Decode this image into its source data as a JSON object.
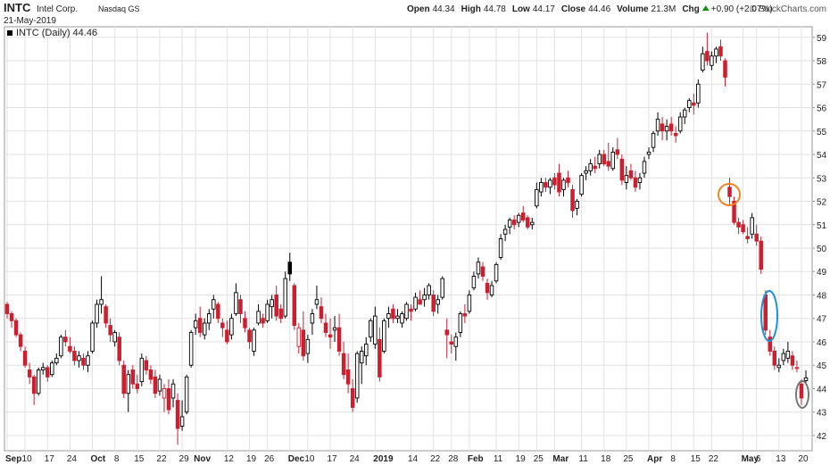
{
  "chart_data": {
    "type": "candlestick",
    "header": {
      "symbol": "INTC",
      "name": "Intel Corp.",
      "exchange": "Nasdaq GS",
      "date": "21-May-2019",
      "quote": [
        {
          "label": "Open",
          "value": "44.34"
        },
        {
          "label": "High",
          "value": "44.78"
        },
        {
          "label": "Low",
          "value": "44.17"
        },
        {
          "label": "Close",
          "value": "44.46"
        },
        {
          "label": "Volume",
          "value": "21.3M"
        },
        {
          "label": "Chg",
          "value": "+0.90 (+2.07%)"
        }
      ],
      "credit": "© StockCharts.com"
    },
    "legend": "INTC (Daily) 44.46",
    "up_color": "#000000",
    "down_color": "#cc1f2f",
    "ylim": [
      41.35,
      59.45
    ],
    "yticks": [
      42,
      43,
      44,
      45,
      46,
      47,
      48,
      49,
      50,
      51,
      52,
      53,
      54,
      55,
      56,
      57,
      58,
      59
    ],
    "grid": true,
    "categories": [
      "Sep",
      null,
      null,
      null,
      "10",
      null,
      null,
      null,
      null,
      "17",
      null,
      null,
      null,
      null,
      "24",
      null,
      null,
      null,
      null,
      "Oct",
      null,
      null,
      null,
      null,
      "8",
      null,
      null,
      null,
      null,
      "15",
      null,
      null,
      null,
      null,
      "22",
      null,
      null,
      null,
      null,
      "29",
      null,
      null,
      "Nov",
      null,
      null,
      null,
      null,
      null,
      null,
      "12",
      null,
      null,
      null,
      null,
      "19",
      null,
      null,
      null,
      "26",
      null,
      null,
      null,
      null,
      "Dec",
      null,
      null,
      null,
      "10",
      null,
      null,
      null,
      null,
      "17",
      null,
      null,
      null,
      null,
      "24",
      null,
      null,
      null,
      null,
      "2019",
      null,
      null,
      null,
      null,
      null,
      null,
      null,
      "14",
      null,
      null,
      null,
      null,
      "22",
      null,
      null,
      null,
      "28",
      null,
      null,
      null,
      "Feb",
      null,
      null,
      null,
      null,
      null,
      "11",
      null,
      null,
      null,
      null,
      "19",
      null,
      null,
      null,
      "25",
      null,
      null,
      null,
      "Mar",
      null,
      null,
      null,
      null,
      null,
      "11",
      null,
      null,
      null,
      null,
      "18",
      null,
      null,
      null,
      null,
      "25",
      null,
      null,
      null,
      null,
      "Apr",
      null,
      null,
      null,
      null,
      "8",
      null,
      null,
      null,
      null,
      "15",
      null,
      null,
      null,
      "22",
      null,
      null,
      null,
      null,
      null,
      null,
      "May",
      null,
      null,
      "6",
      null,
      null,
      null,
      null,
      "13",
      null,
      null,
      null,
      null,
      "20",
      null
    ],
    "ohlc": [
      [
        47.6,
        47.7,
        47.0,
        47.2
      ],
      [
        47.2,
        47.3,
        46.6,
        46.9
      ],
      [
        46.9,
        47.0,
        46.2,
        46.3
      ],
      [
        46.3,
        46.4,
        45.6,
        45.8
      ],
      [
        45.6,
        45.8,
        44.9,
        45.0
      ],
      [
        44.8,
        45.1,
        44.2,
        44.5
      ],
      [
        44.5,
        44.6,
        43.3,
        43.8
      ],
      [
        43.8,
        44.9,
        43.7,
        44.8
      ],
      [
        44.8,
        45.1,
        44.6,
        44.9
      ],
      [
        44.9,
        45.0,
        44.3,
        44.5
      ],
      [
        44.6,
        45.2,
        44.5,
        45.1
      ],
      [
        45.1,
        45.5,
        45.0,
        45.3
      ],
      [
        45.4,
        46.3,
        45.3,
        46.2
      ],
      [
        46.2,
        46.5,
        45.8,
        46.0
      ],
      [
        45.8,
        46.2,
        45.5,
        45.6
      ],
      [
        45.6,
        45.8,
        45.0,
        45.2
      ],
      [
        45.2,
        45.6,
        44.9,
        45.4
      ],
      [
        45.3,
        45.5,
        44.8,
        45.0
      ],
      [
        45.0,
        45.6,
        44.7,
        45.4
      ],
      [
        45.6,
        46.9,
        45.5,
        46.8
      ],
      [
        46.8,
        47.8,
        46.6,
        47.6
      ],
      [
        47.6,
        48.8,
        47.2,
        47.8
      ],
      [
        47.5,
        47.6,
        46.6,
        46.8
      ],
      [
        46.7,
        47.0,
        46.0,
        46.3
      ],
      [
        46.0,
        46.5,
        45.8,
        46.4
      ],
      [
        46.2,
        46.4,
        45.0,
        45.2
      ],
      [
        45.0,
        45.2,
        43.6,
        43.8
      ],
      [
        43.8,
        44.8,
        43.0,
        44.6
      ],
      [
        44.8,
        45.0,
        44.0,
        44.2
      ],
      [
        44.2,
        44.6,
        43.8,
        44.0
      ],
      [
        44.3,
        45.5,
        44.1,
        45.3
      ],
      [
        45.2,
        45.4,
        44.6,
        44.8
      ],
      [
        44.8,
        45.0,
        44.2,
        44.4
      ],
      [
        44.5,
        44.8,
        43.6,
        43.8
      ],
      [
        43.9,
        44.6,
        43.7,
        44.4
      ],
      [
        43.6,
        44.2,
        43.0,
        44.0
      ],
      [
        44.0,
        44.4,
        42.9,
        43.1
      ],
      [
        43.6,
        44.4,
        43.2,
        44.2
      ],
      [
        43.5,
        43.8,
        41.6,
        42.3
      ],
      [
        42.4,
        43.5,
        42.2,
        42.8
      ],
      [
        43.0,
        44.6,
        42.9,
        44.5
      ],
      [
        45.0,
        46.5,
        44.9,
        46.4
      ],
      [
        46.6,
        47.2,
        46.3,
        46.9
      ],
      [
        47.0,
        47.5,
        46.2,
        46.4
      ],
      [
        46.3,
        47.0,
        46.1,
        46.8
      ],
      [
        46.8,
        47.4,
        46.5,
        47.2
      ],
      [
        47.4,
        48.0,
        47.0,
        47.8
      ],
      [
        47.6,
        47.7,
        46.8,
        47.0
      ],
      [
        46.8,
        47.0,
        46.2,
        46.6
      ],
      [
        46.5,
        46.9,
        45.9,
        46.0
      ],
      [
        46.3,
        47.2,
        46.1,
        47.0
      ],
      [
        47.2,
        48.5,
        47.1,
        48.1
      ],
      [
        47.8,
        48.0,
        46.8,
        47.2
      ],
      [
        47.0,
        47.3,
        46.4,
        46.6
      ],
      [
        46.5,
        46.6,
        45.7,
        46.0
      ],
      [
        45.6,
        46.6,
        45.4,
        46.5
      ],
      [
        46.8,
        47.6,
        46.7,
        47.3
      ],
      [
        47.0,
        47.2,
        46.6,
        46.8
      ],
      [
        46.9,
        47.8,
        46.8,
        47.6
      ],
      [
        47.5,
        48.0,
        47.0,
        47.8
      ],
      [
        48.0,
        48.4,
        46.9,
        47.1
      ],
      [
        47.4,
        47.6,
        46.8,
        47.0
      ],
      [
        47.1,
        49.0,
        47.0,
        48.7
      ],
      [
        49.4,
        49.8,
        48.6,
        48.9
      ],
      [
        48.4,
        48.5,
        46.5,
        46.7
      ],
      [
        45.8,
        46.8,
        45.5,
        46.6
      ],
      [
        46.5,
        47.3,
        45.2,
        45.4
      ],
      [
        45.5,
        46.3,
        45.1,
        46.1
      ],
      [
        46.8,
        47.4,
        46.3,
        47.2
      ],
      [
        47.6,
        48.4,
        47.4,
        47.8
      ],
      [
        47.5,
        47.9,
        46.8,
        47.0
      ],
      [
        46.8,
        47.2,
        46.2,
        46.4
      ],
      [
        46.3,
        47.0,
        45.7,
        46.2
      ],
      [
        46.5,
        47.1,
        46.0,
        46.6
      ],
      [
        46.6,
        47.2,
        45.4,
        45.6
      ],
      [
        45.5,
        46.0,
        44.4,
        44.6
      ],
      [
        44.8,
        45.5,
        43.8,
        44.2
      ],
      [
        44.0,
        44.4,
        43.0,
        43.2
      ],
      [
        43.6,
        45.6,
        43.4,
        45.5
      ],
      [
        45.1,
        45.8,
        44.2,
        45.6
      ],
      [
        45.4,
        46.2,
        45.0,
        45.9
      ],
      [
        46.2,
        47.0,
        46.0,
        46.9
      ],
      [
        45.9,
        47.5,
        45.7,
        47.1
      ],
      [
        46.1,
        46.6,
        44.3,
        44.5
      ],
      [
        45.6,
        47.0,
        45.5,
        46.9
      ],
      [
        47.0,
        47.5,
        46.6,
        47.2
      ],
      [
        47.4,
        47.6,
        46.8,
        47.0
      ],
      [
        47.0,
        47.4,
        46.8,
        47.1
      ],
      [
        46.8,
        47.3,
        46.6,
        47.2
      ],
      [
        47.0,
        47.7,
        46.9,
        47.6
      ],
      [
        47.4,
        47.6,
        46.9,
        47.3
      ],
      [
        47.4,
        48.1,
        47.3,
        47.9
      ],
      [
        47.8,
        48.2,
        47.6,
        47.6
      ],
      [
        47.8,
        48.3,
        47.5,
        48.0
      ],
      [
        48.0,
        48.5,
        47.8,
        48.4
      ],
      [
        48.0,
        48.2,
        47.1,
        47.3
      ],
      [
        47.6,
        48.0,
        47.2,
        47.8
      ],
      [
        47.9,
        48.8,
        47.8,
        48.7
      ],
      [
        46.5,
        47.0,
        45.3,
        46.3
      ],
      [
        46.0,
        46.3,
        45.5,
        45.9
      ],
      [
        45.8,
        46.4,
        45.2,
        46.2
      ],
      [
        46.4,
        47.3,
        46.2,
        47.2
      ],
      [
        47.2,
        47.6,
        46.8,
        47.1
      ],
      [
        47.3,
        48.2,
        47.2,
        48.0
      ],
      [
        48.3,
        49.0,
        48.2,
        48.8
      ],
      [
        48.9,
        49.6,
        48.7,
        49.4
      ],
      [
        49.2,
        49.4,
        48.6,
        48.8
      ],
      [
        48.5,
        48.7,
        47.8,
        48.1
      ],
      [
        48.0,
        48.6,
        47.9,
        48.4
      ],
      [
        48.6,
        49.4,
        48.5,
        49.3
      ],
      [
        49.6,
        50.6,
        49.5,
        50.4
      ],
      [
        50.6,
        51.0,
        50.3,
        50.8
      ],
      [
        50.9,
        51.3,
        50.6,
        51.2
      ],
      [
        51.2,
        51.4,
        50.8,
        51.0
      ],
      [
        51.1,
        51.5,
        50.9,
        51.4
      ],
      [
        51.5,
        51.8,
        51.1,
        51.2
      ],
      [
        51.3,
        51.4,
        50.8,
        50.9
      ],
      [
        51.0,
        51.3,
        50.8,
        51.1
      ],
      [
        51.8,
        52.8,
        51.7,
        52.5
      ],
      [
        52.4,
        53.0,
        52.2,
        52.8
      ],
      [
        52.8,
        53.0,
        52.4,
        52.6
      ],
      [
        52.6,
        53.0,
        52.3,
        52.9
      ],
      [
        53.0,
        53.2,
        52.5,
        52.7
      ],
      [
        53.2,
        53.6,
        52.2,
        52.4
      ],
      [
        52.5,
        53.0,
        52.2,
        52.9
      ],
      [
        53.0,
        53.3,
        52.6,
        52.8
      ],
      [
        52.5,
        52.7,
        51.3,
        51.6
      ],
      [
        51.7,
        52.1,
        51.4,
        52.0
      ],
      [
        52.3,
        53.2,
        52.2,
        53.1
      ],
      [
        53.2,
        53.5,
        52.9,
        53.3
      ],
      [
        53.3,
        53.8,
        53.1,
        53.6
      ],
      [
        53.5,
        53.9,
        53.2,
        53.4
      ],
      [
        53.6,
        54.2,
        53.4,
        54.0
      ],
      [
        54.0,
        54.2,
        53.5,
        53.6
      ],
      [
        53.7,
        54.5,
        53.3,
        53.5
      ],
      [
        53.4,
        54.3,
        53.3,
        54.1
      ],
      [
        54.2,
        54.7,
        53.8,
        54.0
      ],
      [
        53.8,
        54.0,
        52.7,
        52.9
      ],
      [
        52.8,
        53.5,
        52.5,
        53.1
      ],
      [
        53.3,
        53.6,
        52.9,
        53.0
      ],
      [
        53.0,
        53.3,
        52.4,
        52.6
      ],
      [
        52.8,
        53.2,
        52.5,
        53.0
      ],
      [
        53.2,
        53.9,
        53.0,
        53.7
      ],
      [
        54.0,
        54.3,
        53.8,
        54.1
      ],
      [
        54.3,
        55.0,
        54.1,
        54.9
      ],
      [
        55.0,
        55.8,
        54.8,
        55.5
      ],
      [
        55.3,
        55.6,
        54.6,
        55.0
      ],
      [
        55.0,
        55.5,
        54.6,
        55.2
      ],
      [
        55.3,
        55.6,
        54.8,
        55.0
      ],
      [
        54.9,
        55.2,
        54.5,
        54.8
      ],
      [
        55.0,
        55.8,
        54.9,
        55.6
      ],
      [
        55.6,
        56.0,
        55.3,
        55.9
      ],
      [
        56.0,
        56.4,
        55.8,
        56.3
      ],
      [
        56.2,
        56.6,
        55.7,
        56.1
      ],
      [
        56.2,
        57.2,
        56.0,
        57.0
      ],
      [
        57.6,
        58.6,
        57.5,
        58.3
      ],
      [
        58.4,
        59.2,
        57.8,
        58.0
      ],
      [
        57.8,
        58.4,
        57.6,
        58.2
      ],
      [
        58.2,
        58.6,
        57.9,
        58.5
      ],
      [
        58.6,
        58.9,
        58.0,
        58.2
      ],
      [
        58.0,
        58.1,
        56.9,
        57.3
      ],
      [
        52.6,
        53.0,
        51.8,
        52.2
      ],
      [
        52.0,
        52.2,
        51.0,
        51.1
      ],
      [
        51.1,
        51.3,
        50.6,
        50.9
      ],
      [
        51.0,
        51.2,
        50.6,
        50.7
      ],
      [
        50.5,
        50.9,
        50.2,
        50.4
      ],
      [
        50.6,
        51.5,
        50.4,
        51.3
      ],
      [
        50.6,
        51.0,
        50.1,
        50.3
      ],
      [
        50.3,
        50.5,
        48.9,
        49.1
      ],
      [
        48.0,
        48.2,
        46.3,
        46.5
      ],
      [
        46.2,
        46.5,
        45.4,
        45.6
      ],
      [
        45.6,
        45.8,
        44.8,
        45.0
      ],
      [
        44.9,
        45.3,
        44.7,
        45.0
      ],
      [
        45.2,
        45.7,
        45.0,
        45.5
      ],
      [
        45.3,
        46.0,
        45.1,
        45.6
      ],
      [
        45.4,
        45.6,
        44.8,
        45.0
      ],
      [
        44.9,
        45.2,
        44.7,
        44.9
      ],
      [
        44.2,
        44.4,
        43.3,
        43.6
      ],
      [
        44.34,
        44.78,
        44.17,
        44.46
      ]
    ]
  }
}
